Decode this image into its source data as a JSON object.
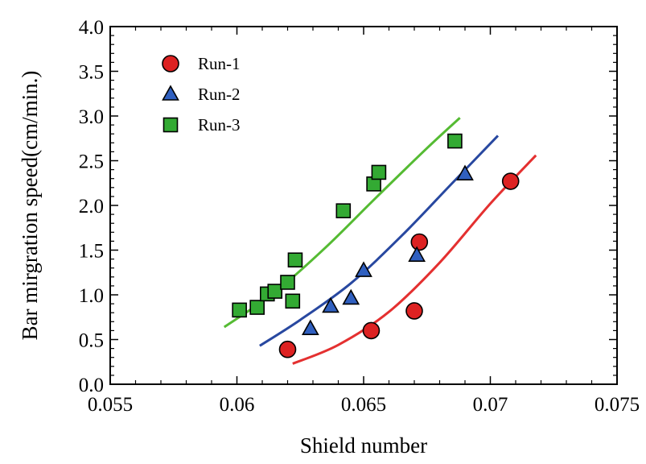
{
  "chart_data": {
    "type": "scatter",
    "title": "",
    "xlabel": "Shield number",
    "ylabel": "Bar mirgration speed(cm/min.)",
    "xlim": [
      0.055,
      0.075
    ],
    "ylim": [
      0.0,
      4.0
    ],
    "grid": false,
    "legend_position": "top-left",
    "x_ticks": [
      0.055,
      0.06,
      0.065,
      0.07,
      0.075
    ],
    "x_tick_labels": [
      "0.055",
      "0.06",
      "0.065",
      "0.07",
      "0.075"
    ],
    "y_ticks": [
      0.0,
      0.5,
      1.0,
      1.5,
      2.0,
      2.5,
      3.0,
      3.5,
      4.0
    ],
    "y_tick_labels": [
      "0.0",
      "0.5",
      "1.0",
      "1.5",
      "2.0",
      "2.5",
      "3.0",
      "3.5",
      "4.0"
    ],
    "series": [
      {
        "name": "Run-1",
        "marker": "circle",
        "color": "#dd2222",
        "line_color": "#e43030",
        "points": [
          [
            0.062,
            0.39
          ],
          [
            0.0653,
            0.6
          ],
          [
            0.067,
            0.82
          ],
          [
            0.0672,
            1.59
          ],
          [
            0.0708,
            2.27
          ]
        ],
        "fit": [
          [
            0.0622,
            0.23
          ],
          [
            0.064,
            0.44
          ],
          [
            0.066,
            0.81
          ],
          [
            0.068,
            1.36
          ],
          [
            0.07,
            2.02
          ],
          [
            0.0718,
            2.56
          ]
        ]
      },
      {
        "name": "Run-2",
        "marker": "triangle",
        "color": "#3060c0",
        "line_color": "#2848a0",
        "points": [
          [
            0.0629,
            0.62
          ],
          [
            0.0637,
            0.87
          ],
          [
            0.0645,
            0.96
          ],
          [
            0.065,
            1.27
          ],
          [
            0.0671,
            1.44
          ],
          [
            0.069,
            2.35
          ]
        ],
        "fit": [
          [
            0.0609,
            0.43
          ],
          [
            0.0625,
            0.72
          ],
          [
            0.0645,
            1.13
          ],
          [
            0.0665,
            1.66
          ],
          [
            0.0685,
            2.25
          ],
          [
            0.0703,
            2.78
          ]
        ]
      },
      {
        "name": "Run-3",
        "marker": "square",
        "color": "#33aa33",
        "line_color": "#55bb33",
        "points": [
          [
            0.0601,
            0.83
          ],
          [
            0.0608,
            0.86
          ],
          [
            0.0612,
            1.01
          ],
          [
            0.0615,
            1.04
          ],
          [
            0.062,
            1.14
          ],
          [
            0.0622,
            0.93
          ],
          [
            0.0623,
            1.39
          ],
          [
            0.0642,
            1.94
          ],
          [
            0.0654,
            2.24
          ],
          [
            0.0656,
            2.37
          ],
          [
            0.0686,
            2.72
          ]
        ],
        "fit": [
          [
            0.0595,
            0.64
          ],
          [
            0.0615,
            1.03
          ],
          [
            0.0635,
            1.53
          ],
          [
            0.0655,
            2.09
          ],
          [
            0.0675,
            2.64
          ],
          [
            0.0688,
            2.98
          ]
        ]
      }
    ]
  }
}
